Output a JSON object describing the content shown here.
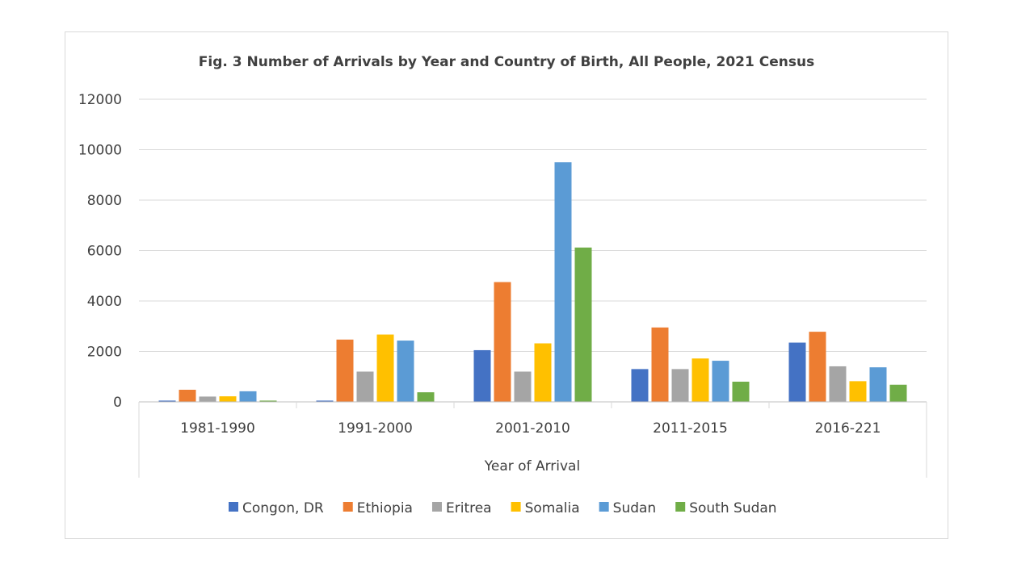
{
  "chart_data": {
    "type": "bar",
    "title": "Fig. 3 Number of Arrivals by Year and Country of Birth, All People, 2021 Census",
    "xlabel": "Year of Arrival",
    "ylabel": "",
    "ylim": [
      0,
      12000
    ],
    "yticks": [
      0,
      2000,
      4000,
      6000,
      8000,
      10000,
      12000
    ],
    "grid": true,
    "legend_position": "bottom",
    "categories": [
      "1981-1990",
      "1991-2000",
      "2001-2010",
      "2011-2015",
      "2016-221"
    ],
    "series": [
      {
        "name": "Congon, DR",
        "color": "#4472C4",
        "values": [
          50,
          50,
          2050,
          1300,
          2350
        ]
      },
      {
        "name": "Ethiopia",
        "color": "#ED7D31",
        "values": [
          480,
          2470,
          4750,
          2950,
          2780
        ]
      },
      {
        "name": "Eritrea",
        "color": "#A5A5A5",
        "values": [
          210,
          1200,
          1200,
          1300,
          1410
        ]
      },
      {
        "name": "Somalia",
        "color": "#FFC000",
        "values": [
          220,
          2670,
          2320,
          1720,
          820
        ]
      },
      {
        "name": "Sudan",
        "color": "#5B9BD5",
        "values": [
          420,
          2430,
          9500,
          1630,
          1370
        ]
      },
      {
        "name": "South Sudan",
        "color": "#70AD47",
        "values": [
          50,
          380,
          6120,
          800,
          680
        ]
      }
    ]
  }
}
